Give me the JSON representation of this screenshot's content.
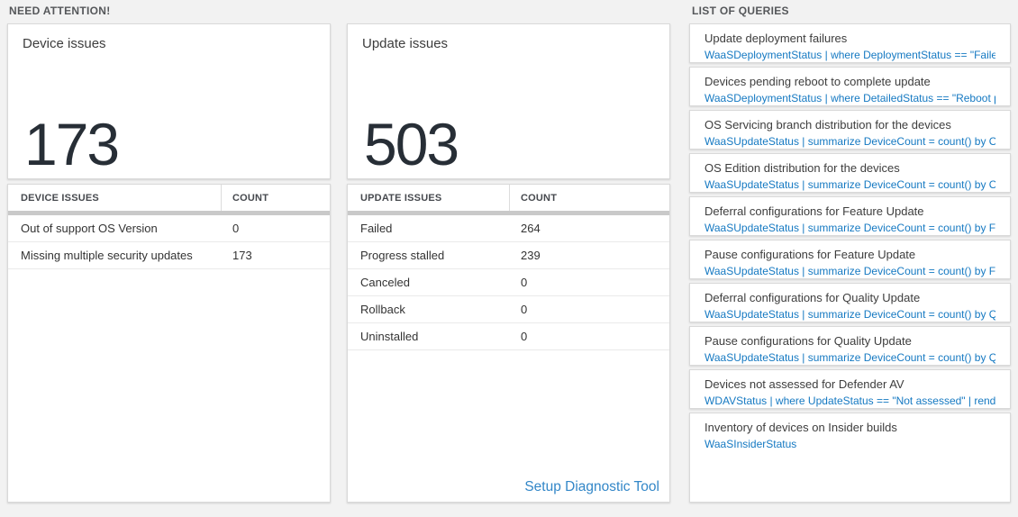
{
  "sections": {
    "left_label": "NEED ATTENTION!",
    "right_label": "LIST OF QUERIES"
  },
  "device_card": {
    "title": "Device issues",
    "count": "173",
    "table": {
      "issue_header": "DEVICE ISSUES",
      "count_header": "COUNT",
      "rows": [
        {
          "label": "Out of support OS Version",
          "count": "0"
        },
        {
          "label": "Missing multiple security updates",
          "count": "173"
        }
      ]
    }
  },
  "update_card": {
    "title": "Update issues",
    "count": "503",
    "table": {
      "issue_header": "UPDATE ISSUES",
      "count_header": "COUNT",
      "rows": [
        {
          "label": "Failed",
          "count": "264"
        },
        {
          "label": "Progress stalled",
          "count": "239"
        },
        {
          "label": "Canceled",
          "count": "0"
        },
        {
          "label": "Rollback",
          "count": "0"
        },
        {
          "label": "Uninstalled",
          "count": "0"
        }
      ]
    },
    "setup_link": "Setup Diagnostic Tool"
  },
  "queries": [
    {
      "name": "Update deployment failures",
      "query": "WaaSDeploymentStatus | where DeploymentStatus == \"Failed\" |..."
    },
    {
      "name": "Devices pending reboot to complete update",
      "query": "WaaSDeploymentStatus | where DetailedStatus == \"Reboot pend..."
    },
    {
      "name": "OS Servicing branch distribution for the devices",
      "query": "WaaSUpdateStatus | summarize DeviceCount = count() by OSSer..."
    },
    {
      "name": "OS Edition distribution for the devices",
      "query": "WaaSUpdateStatus | summarize DeviceCount = count() by OSEdit..."
    },
    {
      "name": "Deferral configurations for Feature Update",
      "query": "WaaSUpdateStatus | summarize DeviceCount = count() by Featur..."
    },
    {
      "name": "Pause configurations for Feature Update",
      "query": "WaaSUpdateStatus | summarize DeviceCount = count() by Featur..."
    },
    {
      "name": "Deferral configurations for Quality Update",
      "query": "WaaSUpdateStatus | summarize DeviceCount = count() by Qualit..."
    },
    {
      "name": "Pause configurations for Quality Update",
      "query": "WaaSUpdateStatus | summarize DeviceCount = count() by Qualit..."
    },
    {
      "name": "Devices not assessed for Defender AV",
      "query": "WDAVStatus | where UpdateStatus == \"Not assessed\" | render ta..."
    },
    {
      "name": "Inventory of devices on Insider builds",
      "query": "WaaSInsiderStatus"
    }
  ],
  "colors": {
    "page_background": "#f2f2f2",
    "tile_border": "#d9d9d9",
    "big_number": "#272e36",
    "query_link_blue": "#1579c2",
    "setup_link_blue": "#3387c8",
    "table_divider_bar": "#c9c9c9"
  }
}
